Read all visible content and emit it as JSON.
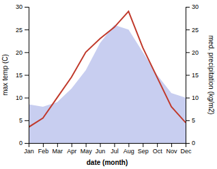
{
  "chart_data": {
    "type": "line",
    "categories": [
      "Jan",
      "Feb",
      "Mar",
      "Apr",
      "May",
      "Jun",
      "Jul",
      "Aug",
      "Sep",
      "Oct",
      "Nov",
      "Dec"
    ],
    "xlabel": "date (month)",
    "ylabel": "max temp (C)",
    "y2label": "med. precipitation (kg/m2)",
    "ylim": [
      0,
      30
    ],
    "yticks": [
      0,
      5,
      10,
      15,
      20,
      25,
      30
    ],
    "y2lim": [
      0,
      30
    ],
    "y2ticks": [
      0,
      5,
      10,
      15,
      20,
      25,
      30
    ],
    "series": [
      {
        "type": "area",
        "axis": "y2",
        "color": "#c8cef0",
        "values": [
          8.5,
          8.0,
          9.0,
          12.0,
          16.0,
          22.0,
          26.0,
          25.0,
          20.0,
          15.0,
          11.0,
          10.0
        ]
      },
      {
        "type": "line",
        "color": "#c0392b",
        "values": [
          3.5,
          5.5,
          10.0,
          14.5,
          20.0,
          23.0,
          25.5,
          29.0,
          21.0,
          14.5,
          8.0,
          4.5
        ]
      }
    ]
  }
}
